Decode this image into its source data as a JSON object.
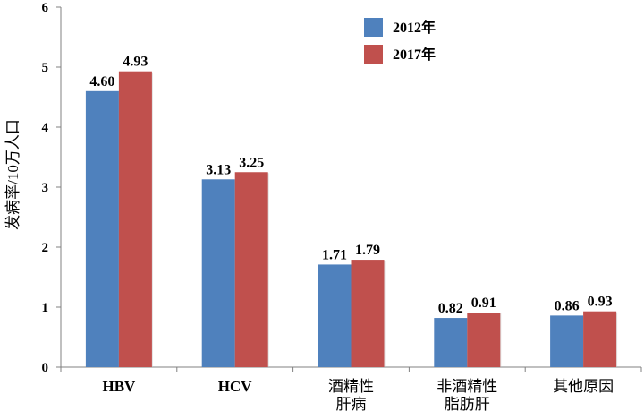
{
  "chart_data": {
    "type": "bar",
    "title": "",
    "xlabel": "",
    "ylabel": "发病率/10万人口",
    "ylim": [
      0,
      6
    ],
    "yticks": [
      "0",
      "1",
      "2",
      "3",
      "4",
      "5",
      "6"
    ],
    "grid": false,
    "legend_position": "top-center",
    "categories": [
      [
        "HBV"
      ],
      [
        "HCV"
      ],
      [
        "酒精性",
        "肝病"
      ],
      [
        "非酒精性",
        "脂肪肝"
      ],
      [
        "其他原因"
      ]
    ],
    "series": [
      {
        "name": "2012年",
        "color": "#4F81BD",
        "values": [
          4.6,
          3.13,
          1.71,
          0.82,
          0.86
        ],
        "labels": [
          "4.60",
          "3.13",
          "1.71",
          "0.82",
          "0.86"
        ]
      },
      {
        "name": "2017年",
        "color": "#C0504D",
        "values": [
          4.93,
          3.25,
          1.79,
          0.91,
          0.93
        ],
        "labels": [
          "4.93",
          "3.25",
          "1.79",
          "0.91",
          "0.93"
        ]
      }
    ]
  }
}
